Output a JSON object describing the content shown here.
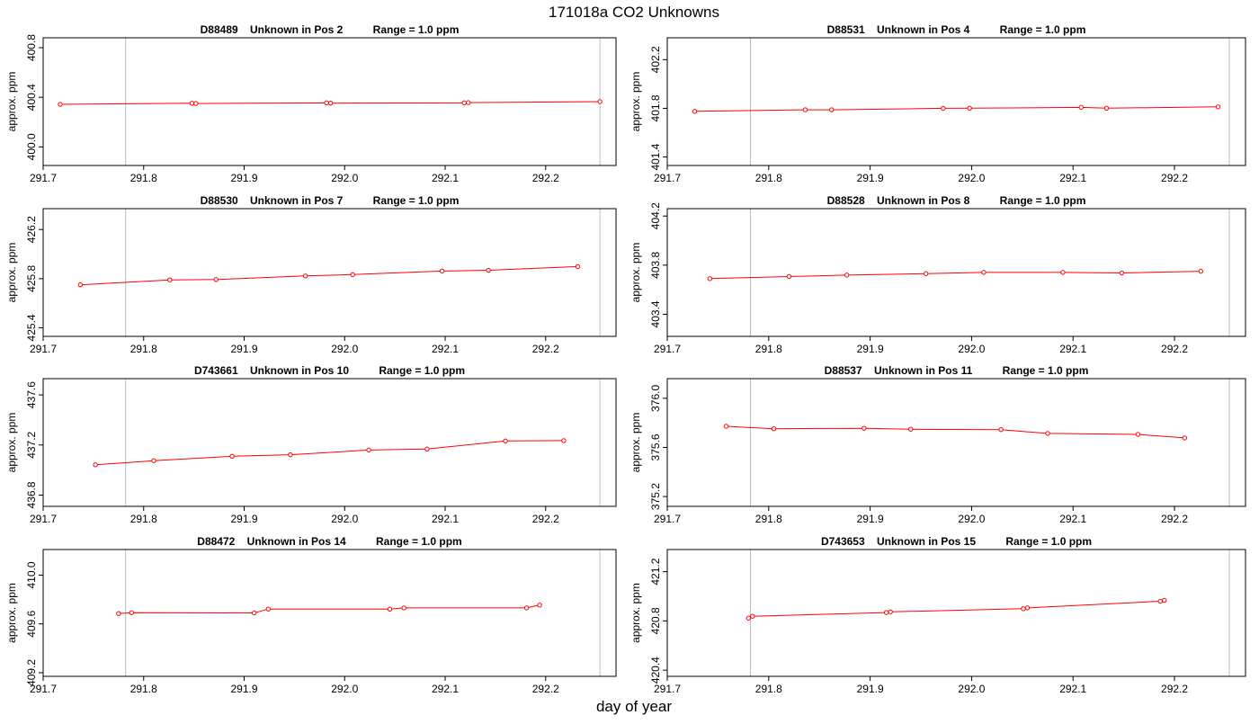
{
  "page": {
    "title": "171018a  CO2 Unknowns",
    "xlabel": "day of year"
  },
  "chart_data": [
    {
      "type": "line",
      "title": "D88489    Unknown in Pos 2          Range = 1.0 ppm",
      "ylabel": "approx. ppm",
      "xlim": [
        291.7,
        292.27
      ],
      "ylim": [
        399.85,
        400.88
      ],
      "xticks": [
        291.7,
        291.8,
        291.9,
        292.0,
        292.1,
        292.2
      ],
      "xtick_labels": [
        "291.7",
        "291.8",
        "291.9",
        "292.0",
        "292.1",
        "292.2"
      ],
      "yticks": [
        400.0,
        400.4,
        400.8
      ],
      "ytick_labels": [
        "400.0",
        "400.4",
        "400.8"
      ],
      "vlines": [
        291.782,
        292.254
      ],
      "series": [
        {
          "color": "#ff0000",
          "x": [
            291.717,
            291.848,
            291.852,
            291.982,
            291.986,
            292.119,
            292.123,
            292.254
          ],
          "y": [
            400.343,
            400.352,
            400.35,
            400.355,
            400.353,
            400.355,
            400.357,
            400.365
          ]
        }
      ]
    },
    {
      "type": "line",
      "title": "D88531    Unknown in Pos 4          Range = 1.0 ppm",
      "ylabel": "approx. ppm",
      "xlim": [
        291.7,
        292.27
      ],
      "ylim": [
        401.33,
        402.38
      ],
      "xticks": [
        291.7,
        291.8,
        291.9,
        292.0,
        292.1,
        292.2
      ],
      "xtick_labels": [
        "291.7",
        "291.8",
        "291.9",
        "292.0",
        "292.1",
        "292.2"
      ],
      "yticks": [
        401.4,
        401.8,
        402.2
      ],
      "ytick_labels": [
        "401.4",
        "401.8",
        "402.2"
      ],
      "vlines": [
        291.782,
        292.254
      ],
      "series": [
        {
          "color": "#ff0000",
          "x": [
            291.727,
            291.836,
            291.862,
            291.972,
            291.998,
            292.108,
            292.133,
            292.243
          ],
          "y": [
            401.775,
            401.788,
            401.788,
            401.8,
            401.801,
            401.808,
            401.801,
            401.812
          ]
        }
      ]
    },
    {
      "type": "line",
      "title": "D88530    Unknown in Pos 7          Range = 1.0 ppm",
      "ylabel": "approx. ppm",
      "xlim": [
        291.7,
        292.27
      ],
      "ylim": [
        425.33,
        426.37
      ],
      "xticks": [
        291.7,
        291.8,
        291.9,
        292.0,
        292.1,
        292.2
      ],
      "xtick_labels": [
        "291.7",
        "291.8",
        "291.9",
        "292.0",
        "292.1",
        "292.2"
      ],
      "yticks": [
        425.4,
        425.8,
        426.2
      ],
      "ytick_labels": [
        "425.4",
        "425.8",
        "426.2"
      ],
      "vlines": [
        291.782,
        292.254
      ],
      "series": [
        {
          "color": "#ff0000",
          "x": [
            291.737,
            291.826,
            291.872,
            291.961,
            292.008,
            292.097,
            292.143,
            292.232
          ],
          "y": [
            425.75,
            425.79,
            425.793,
            425.822,
            425.833,
            425.862,
            425.868,
            425.898
          ]
        }
      ]
    },
    {
      "type": "line",
      "title": "D88528    Unknown in Pos 8          Range = 1.0 ppm",
      "ylabel": "approx. ppm",
      "xlim": [
        291.7,
        292.27
      ],
      "ylim": [
        403.22,
        404.26
      ],
      "xticks": [
        291.7,
        291.8,
        291.9,
        292.0,
        292.1,
        292.2
      ],
      "xtick_labels": [
        "291.7",
        "291.8",
        "291.9",
        "292.0",
        "292.1",
        "292.2"
      ],
      "yticks": [
        403.4,
        403.8,
        404.2
      ],
      "ytick_labels": [
        "403.4",
        "403.8",
        "404.2"
      ],
      "vlines": [
        291.782,
        292.254
      ],
      "series": [
        {
          "color": "#ff0000",
          "x": [
            291.742,
            291.82,
            291.877,
            291.955,
            292.012,
            292.09,
            292.148,
            292.226
          ],
          "y": [
            403.69,
            403.707,
            403.719,
            403.731,
            403.741,
            403.741,
            403.736,
            403.75
          ]
        }
      ]
    },
    {
      "type": "line",
      "title": "D743661    Unknown in Pos 10          Range = 1.0 ppm",
      "ylabel": "approx. ppm",
      "xlim": [
        291.7,
        292.27
      ],
      "ylim": [
        436.71,
        437.73
      ],
      "xticks": [
        291.7,
        291.8,
        291.9,
        292.0,
        292.1,
        292.2
      ],
      "xtick_labels": [
        "291.7",
        "291.8",
        "291.9",
        "292.0",
        "292.1",
        "292.2"
      ],
      "yticks": [
        436.8,
        437.2,
        437.6
      ],
      "ytick_labels": [
        "436.8",
        "437.2",
        "437.6"
      ],
      "vlines": [
        291.782,
        292.254
      ],
      "series": [
        {
          "color": "#ff0000",
          "x": [
            291.752,
            291.81,
            291.888,
            291.946,
            292.024,
            292.082,
            292.16,
            292.218
          ],
          "y": [
            437.042,
            437.075,
            437.11,
            437.122,
            437.16,
            437.168,
            437.232,
            437.235
          ]
        }
      ]
    },
    {
      "type": "line",
      "title": "D88537    Unknown in Pos 11          Range = 1.0 ppm",
      "ylabel": "approx. ppm",
      "xlim": [
        291.7,
        292.27
      ],
      "ylim": [
        375.12,
        376.16
      ],
      "xticks": [
        291.7,
        291.8,
        291.9,
        292.0,
        292.1,
        292.2
      ],
      "xtick_labels": [
        "291.7",
        "291.8",
        "291.9",
        "292.0",
        "292.1",
        "292.2"
      ],
      "yticks": [
        375.2,
        375.6,
        376.0
      ],
      "ytick_labels": [
        "375.2",
        "375.6",
        "376.0"
      ],
      "vlines": [
        291.782,
        292.254
      ],
      "series": [
        {
          "color": "#ff0000",
          "x": [
            291.758,
            291.805,
            291.894,
            291.94,
            292.029,
            292.075,
            292.164,
            292.21
          ],
          "y": [
            375.772,
            375.752,
            375.756,
            375.748,
            375.745,
            375.714,
            375.706,
            375.677
          ]
        }
      ]
    },
    {
      "type": "line",
      "title": "D88472    Unknown in Pos 14          Range = 1.0 ppm",
      "ylabel": "approx. ppm",
      "xlim": [
        291.7,
        292.27
      ],
      "ylim": [
        409.17,
        410.21
      ],
      "xticks": [
        291.7,
        291.8,
        291.9,
        292.0,
        292.1,
        292.2
      ],
      "xtick_labels": [
        "291.7",
        "291.8",
        "291.9",
        "292.0",
        "292.1",
        "292.2"
      ],
      "yticks": [
        409.2,
        409.6,
        410.0
      ],
      "ytick_labels": [
        "409.2",
        "409.6",
        "410.0"
      ],
      "vlines": [
        291.782,
        292.254
      ],
      "series": [
        {
          "color": "#ff0000",
          "x": [
            291.775,
            291.788,
            291.91,
            291.924,
            292.045,
            292.059,
            292.181,
            292.194
          ],
          "y": [
            409.685,
            409.692,
            409.69,
            409.722,
            409.721,
            409.731,
            409.731,
            409.754
          ]
        }
      ]
    },
    {
      "type": "line",
      "title": "D743653    Unknown in Pos 15          Range = 1.0 ppm",
      "ylabel": "approx. ppm",
      "xlim": [
        291.7,
        292.27
      ],
      "ylim": [
        420.35,
        421.38
      ],
      "xticks": [
        291.7,
        291.8,
        291.9,
        292.0,
        292.1,
        292.2
      ],
      "xtick_labels": [
        "291.7",
        "291.8",
        "291.9",
        "292.0",
        "292.1",
        "292.2"
      ],
      "yticks": [
        420.4,
        420.8,
        421.2
      ],
      "ytick_labels": [
        "420.4",
        "420.8",
        "421.2"
      ],
      "vlines": [
        291.782,
        292.254
      ],
      "series": [
        {
          "color": "#ff0000",
          "x": [
            291.78,
            291.784,
            291.916,
            291.92,
            292.051,
            292.055,
            292.186,
            292.19
          ],
          "y": [
            420.823,
            420.838,
            420.868,
            420.874,
            420.899,
            420.906,
            420.96,
            420.967
          ]
        }
      ]
    }
  ]
}
